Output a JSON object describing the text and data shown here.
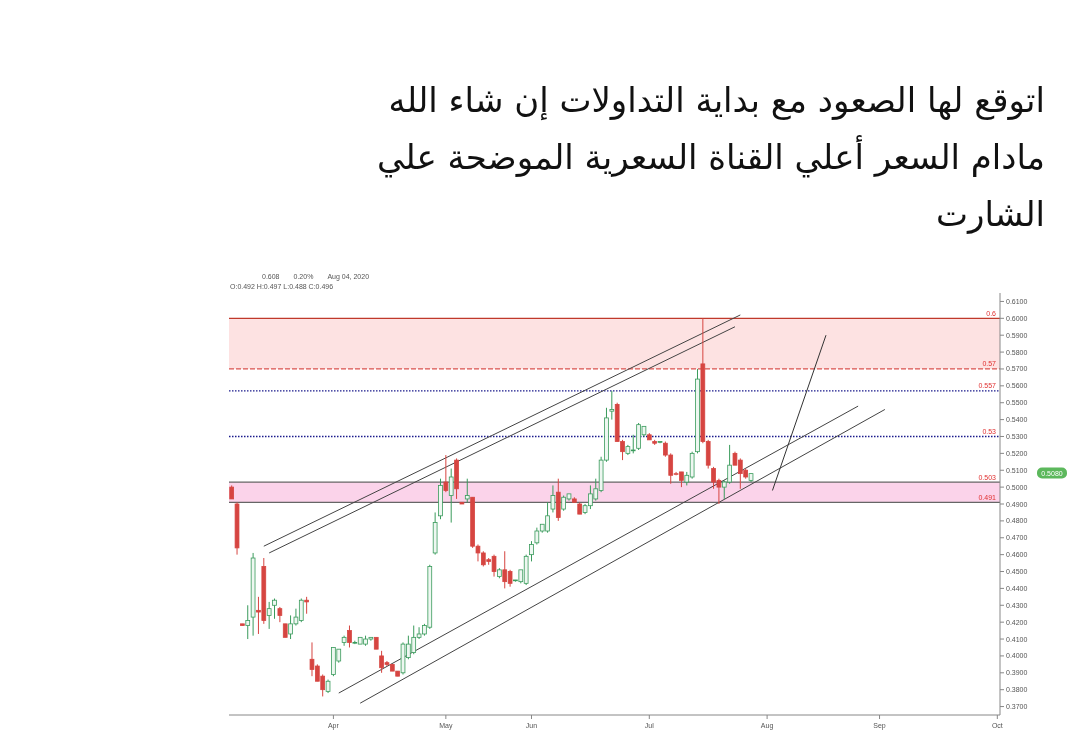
{
  "chart_data": {
    "type": "candlestick",
    "title": "اتوقع لها الصعود مع بداية التداولات إن شاء الله",
    "subtitle": "مادام السعر أعلي القناة السعرية الموضحة علي الشارت",
    "categories": [
      null,
      null,
      null,
      null,
      null,
      null,
      null,
      null,
      null,
      null,
      null,
      null,
      null,
      null,
      null,
      null,
      null,
      null,
      null,
      "Apr",
      null,
      null,
      null,
      null,
      null,
      null,
      null,
      null,
      null,
      null,
      null,
      null,
      null,
      null,
      null,
      null,
      null,
      null,
      null,
      null,
      "May",
      null,
      null,
      null,
      null,
      null,
      null,
      null,
      null,
      null,
      null,
      null,
      null,
      null,
      null,
      null,
      "Jun",
      null,
      null,
      null,
      null,
      null,
      null,
      null,
      null,
      null,
      null,
      null,
      null,
      null,
      null,
      null,
      null,
      null,
      null,
      null,
      null,
      null,
      "Jul",
      null,
      null,
      null,
      null,
      null,
      null,
      null,
      null,
      null,
      null,
      null,
      null,
      null,
      null,
      null,
      null,
      null,
      null,
      null,
      null,
      null,
      "Aug",
      null,
      null,
      null,
      null,
      null,
      null,
      null,
      null,
      null,
      null,
      null,
      null,
      null,
      null,
      null,
      null,
      null,
      null,
      null,
      null,
      "Sep",
      null,
      null,
      null,
      null,
      null,
      null,
      null,
      null,
      null,
      null,
      null,
      null,
      null,
      null,
      null,
      null,
      null,
      null,
      null,
      null,
      null,
      "Oct"
    ],
    "ohlc": [
      [
        0.5,
        0.501,
        0.493,
        0.493
      ],
      [
        0.49,
        0.491,
        0.46,
        0.464
      ],
      [
        0.419,
        0.419,
        0.418,
        0.418
      ],
      [
        0.418,
        0.43,
        0.41,
        0.421
      ],
      [
        0.423,
        0.461,
        0.412,
        0.458
      ],
      [
        0.427,
        0.435,
        0.413,
        0.426
      ],
      [
        0.453,
        0.458,
        0.419,
        0.421
      ],
      [
        0.424,
        0.432,
        0.416,
        0.428
      ],
      [
        0.43,
        0.434,
        0.422,
        0.433
      ],
      [
        0.428,
        0.429,
        0.42,
        0.424
      ],
      [
        0.419,
        0.419,
        0.411,
        0.411
      ],
      [
        0.413,
        0.424,
        0.41,
        0.419
      ],
      [
        0.419,
        0.428,
        0.418,
        0.423
      ],
      [
        0.421,
        0.434,
        0.42,
        0.433
      ],
      [
        0.433,
        0.435,
        0.425,
        0.432
      ],
      [
        0.398,
        0.408,
        0.388,
        0.392
      ],
      [
        0.394,
        0.395,
        0.385,
        0.385
      ],
      [
        0.388,
        0.389,
        0.376,
        0.38
      ],
      [
        0.379,
        0.386,
        0.378,
        0.385
      ],
      [
        0.389,
        0.405,
        0.388,
        0.405
      ],
      [
        0.397,
        0.404,
        0.396,
        0.404
      ],
      [
        0.408,
        0.412,
        0.406,
        0.411
      ],
      [
        0.415,
        0.418,
        0.405,
        0.408
      ],
      [
        0.408,
        0.409,
        0.407,
        0.408
      ],
      [
        0.407,
        0.411,
        0.407,
        0.411
      ],
      [
        0.407,
        0.412,
        0.406,
        0.41
      ],
      [
        0.41,
        0.411,
        0.409,
        0.411
      ],
      [
        0.411,
        0.411,
        0.404,
        0.404
      ],
      [
        0.4,
        0.403,
        0.39,
        0.393
      ],
      [
        0.396,
        0.397,
        0.394,
        0.395
      ],
      [
        0.395,
        0.395,
        0.391,
        0.391
      ],
      [
        0.391,
        0.391,
        0.388,
        0.388
      ],
      [
        0.39,
        0.408,
        0.389,
        0.407
      ],
      [
        0.399,
        0.412,
        0.398,
        0.407
      ],
      [
        0.402,
        0.418,
        0.401,
        0.411
      ],
      [
        0.411,
        0.417,
        0.41,
        0.413
      ],
      [
        0.413,
        0.419,
        0.412,
        0.418
      ],
      [
        0.417,
        0.454,
        0.416,
        0.453
      ],
      [
        0.461,
        0.485,
        0.46,
        0.479
      ],
      [
        0.483,
        0.505,
        0.481,
        0.501
      ],
      [
        0.503,
        0.519,
        0.497,
        0.498
      ],
      [
        0.495,
        0.511,
        0.479,
        0.506
      ],
      [
        0.516,
        0.517,
        0.493,
        0.499
      ],
      [
        0.491,
        0.491,
        0.49,
        0.49
      ],
      [
        0.493,
        0.505,
        0.491,
        0.495
      ],
      [
        0.494,
        0.494,
        0.464,
        0.465
      ],
      [
        0.465,
        0.466,
        0.456,
        0.461
      ],
      [
        0.461,
        0.462,
        0.453,
        0.454
      ],
      [
        0.457,
        0.458,
        0.454,
        0.456
      ],
      [
        0.459,
        0.46,
        0.447,
        0.45
      ],
      [
        0.447,
        0.452,
        0.446,
        0.451
      ],
      [
        0.451,
        0.462,
        0.44,
        0.444
      ],
      [
        0.45,
        0.451,
        0.441,
        0.443
      ],
      [
        0.445,
        0.445,
        0.444,
        0.445
      ],
      [
        0.444,
        0.451,
        0.443,
        0.451
      ],
      [
        0.443,
        0.46,
        0.442,
        0.459
      ],
      [
        0.46,
        0.468,
        0.456,
        0.466
      ],
      [
        0.467,
        0.476,
        0.466,
        0.474
      ],
      [
        0.474,
        0.478,
        0.473,
        0.478
      ],
      [
        0.474,
        0.491,
        0.473,
        0.483
      ],
      [
        0.487,
        0.501,
        0.485,
        0.495
      ],
      [
        0.497,
        0.505,
        0.48,
        0.482
      ],
      [
        0.487,
        0.495,
        0.486,
        0.494
      ],
      [
        0.493,
        0.496,
        0.492,
        0.496
      ],
      [
        0.493,
        0.494,
        0.491,
        0.491
      ],
      [
        0.49,
        0.491,
        0.484,
        0.484
      ],
      [
        0.485,
        0.49,
        0.484,
        0.489
      ],
      [
        0.489,
        0.501,
        0.487,
        0.496
      ],
      [
        0.493,
        0.505,
        0.492,
        0.499
      ],
      [
        0.498,
        0.518,
        0.497,
        0.516
      ],
      [
        0.516,
        0.547,
        0.515,
        0.541
      ],
      [
        0.545,
        0.557,
        0.54,
        0.546
      ],
      [
        0.549,
        0.55,
        0.527,
        0.527
      ],
      [
        0.527,
        0.528,
        0.516,
        0.521
      ],
      [
        0.52,
        0.525,
        0.519,
        0.524
      ],
      [
        0.522,
        0.531,
        0.52,
        0.522
      ],
      [
        0.523,
        0.538,
        0.522,
        0.537
      ],
      [
        0.531,
        0.536,
        0.53,
        0.536
      ],
      [
        0.531,
        0.532,
        0.528,
        0.528
      ],
      [
        0.527,
        0.528,
        0.525,
        0.526
      ],
      [
        0.527,
        0.527,
        0.526,
        0.527
      ],
      [
        0.526,
        0.527,
        0.518,
        0.519
      ],
      [
        0.519,
        0.52,
        0.502,
        0.507
      ],
      [
        0.508,
        0.509,
        0.507,
        0.508
      ],
      [
        0.509,
        0.509,
        0.5,
        0.504
      ],
      [
        0.503,
        0.509,
        0.501,
        0.507
      ],
      [
        0.506,
        0.521,
        0.505,
        0.52
      ],
      [
        0.521,
        0.57,
        0.52,
        0.564
      ],
      [
        0.573,
        0.6,
        0.526,
        0.527
      ],
      [
        0.527,
        0.528,
        0.511,
        0.513
      ],
      [
        0.511,
        0.512,
        0.499,
        0.503
      ],
      [
        0.504,
        0.505,
        0.49,
        0.5
      ],
      [
        0.5,
        0.504,
        0.493,
        0.503
      ],
      [
        0.503,
        0.525,
        0.502,
        0.513
      ],
      [
        0.52,
        0.521,
        0.513,
        0.513
      ],
      [
        0.516,
        0.517,
        0.499,
        0.508
      ],
      [
        0.51,
        0.511,
        0.505,
        0.506
      ],
      [
        0.504,
        0.508,
        0.503,
        0.508
      ],
      null,
      null,
      null,
      null,
      null,
      null,
      null,
      null,
      null,
      null,
      null,
      null,
      null,
      null,
      null,
      null,
      null,
      null,
      null,
      null,
      null,
      null,
      null,
      null,
      null,
      null,
      null,
      null,
      null,
      null,
      null,
      null,
      null,
      null,
      null,
      null,
      null,
      null,
      null,
      null,
      null,
      null,
      null,
      null,
      null,
      null
    ],
    "colors": [
      "#d64541",
      "#d64541",
      "#d64541",
      "#3a9b5c",
      "#3a9b5c",
      "#d64541",
      "#d64541",
      "#3a9b5c",
      "#3a9b5c",
      "#d64541",
      "#d64541",
      "#3a9b5c",
      "#3a9b5c",
      "#3a9b5c",
      "#d64541",
      "#d64541",
      "#d64541",
      "#d64541",
      "#3a9b5c",
      "#3a9b5c",
      "#3a9b5c",
      "#3a9b5c",
      "#d64541",
      "#3a9b5c",
      "#3a9b5c",
      "#3a9b5c",
      "#3a9b5c",
      "#d64541",
      "#d64541",
      "#d64541",
      "#d64541",
      "#d64541",
      "#3a9b5c",
      "#3a9b5c",
      "#3a9b5c",
      "#3a9b5c",
      "#3a9b5c",
      "#3a9b5c",
      "#3a9b5c",
      "#3a9b5c",
      "#d64541",
      "#3a9b5c",
      "#d64541",
      "#d64541",
      "#3a9b5c",
      "#d64541",
      "#d64541",
      "#d64541",
      "#d64541",
      "#d64541",
      "#3a9b5c",
      "#d64541",
      "#d64541",
      "#3a9b5c",
      "#3a9b5c",
      "#3a9b5c",
      "#3a9b5c",
      "#3a9b5c",
      "#3a9b5c",
      "#3a9b5c",
      "#3a9b5c",
      "#d64541",
      "#3a9b5c",
      "#3a9b5c",
      "#d64541",
      "#d64541",
      "#3a9b5c",
      "#3a9b5c",
      "#3a9b5c",
      "#3a9b5c",
      "#3a9b5c",
      "#3a9b5c",
      "#d64541",
      "#d64541",
      "#3a9b5c",
      "#3a9b5c",
      "#3a9b5c",
      "#3a9b5c",
      "#d64541",
      "#d64541",
      "#3a9b5c",
      "#d64541",
      "#d64541",
      "#d64541",
      "#d64541",
      "#3a9b5c",
      "#3a9b5c",
      "#3a9b5c",
      "#d64541",
      "#d64541",
      "#d64541",
      "#d64541",
      "#3a9b5c",
      "#3a9b5c",
      "#d64541",
      "#d64541",
      "#d64541",
      "#3a9b5c",
      null,
      null,
      null,
      null,
      null,
      null,
      null,
      null,
      null,
      null,
      null,
      null,
      null,
      null,
      null,
      null,
      null,
      null,
      null,
      null,
      null,
      null,
      null,
      null,
      null,
      null,
      null,
      null,
      null,
      null,
      null,
      null,
      null,
      null,
      null,
      null,
      null,
      null,
      null,
      null,
      null,
      null,
      null,
      null,
      null,
      null
    ],
    "ylim": [
      0.365,
      0.615
    ],
    "yticks": [
      {
        "value": 0.37,
        "label": "0.3700"
      },
      {
        "value": 0.38,
        "label": "0.3800"
      },
      {
        "value": 0.39,
        "label": "0.3900"
      },
      {
        "value": 0.4,
        "label": "0.4000"
      },
      {
        "value": 0.41,
        "label": "0.4100"
      },
      {
        "value": 0.42,
        "label": "0.4200"
      },
      {
        "value": 0.43,
        "label": "0.4300"
      },
      {
        "value": 0.44,
        "label": "0.4400"
      },
      {
        "value": 0.45,
        "label": "0.4500"
      },
      {
        "value": 0.46,
        "label": "0.4600"
      },
      {
        "value": 0.47,
        "label": "0.4700"
      },
      {
        "value": 0.48,
        "label": "0.4800"
      },
      {
        "value": 0.49,
        "label": "0.4900"
      },
      {
        "value": 0.5,
        "label": "0.5000"
      },
      {
        "value": 0.51,
        "label": "0.5100"
      },
      {
        "value": 0.52,
        "label": "0.5200"
      },
      {
        "value": 0.53,
        "label": "0.5300"
      },
      {
        "value": 0.54,
        "label": "0.5400"
      },
      {
        "value": 0.55,
        "label": "0.5500"
      },
      {
        "value": 0.56,
        "label": "0.5600"
      },
      {
        "value": 0.57,
        "label": "0.5700"
      },
      {
        "value": 0.58,
        "label": "0.5800"
      },
      {
        "value": 0.59,
        "label": "0.5900"
      },
      {
        "value": 0.6,
        "label": "0.6000"
      },
      {
        "value": 0.61,
        "label": "0.6100"
      }
    ],
    "series": [
      {
        "type": "line",
        "color": "#444444",
        "values": [
          null,
          null,
          null,
          null,
          null,
          null,
          0.465,
          null,
          null,
          null,
          null,
          null,
          null,
          null,
          null,
          null,
          null,
          null,
          null,
          null,
          null,
          null,
          null,
          null,
          null,
          null,
          null,
          null,
          null,
          null,
          null,
          null,
          null,
          null,
          null,
          null,
          null,
          null,
          null,
          null,
          null,
          null,
          null,
          null,
          null,
          null,
          null,
          null,
          null,
          null,
          null,
          null,
          null,
          null,
          null,
          null,
          null,
          null,
          null,
          null,
          null,
          null,
          null,
          null,
          null,
          null,
          null,
          null,
          null,
          null,
          null,
          null,
          null,
          null,
          null,
          null,
          null,
          null,
          null,
          null,
          null,
          null,
          null,
          null,
          null,
          null,
          null,
          null,
          null,
          null,
          null,
          null,
          null,
          null,
          null,
          0.602,
          null,
          null,
          null,
          null,
          null,
          null,
          null,
          null,
          null,
          null,
          null,
          null,
          null,
          null,
          null,
          null,
          null,
          null,
          null,
          null,
          null,
          null,
          null,
          null,
          null,
          null,
          null,
          null,
          null,
          null,
          null,
          null,
          null,
          null,
          null,
          null,
          null,
          null,
          null,
          null,
          null,
          null,
          null,
          null,
          null,
          null,
          null,
          null
        ]
      },
      {
        "type": "line",
        "color": "#444444",
        "values": [
          null,
          null,
          null,
          null,
          null,
          null,
          null,
          0.461,
          null,
          null,
          null,
          null,
          null,
          null,
          null,
          null,
          null,
          null,
          null,
          null,
          null,
          null,
          null,
          null,
          null,
          null,
          null,
          null,
          null,
          null,
          null,
          null,
          null,
          null,
          null,
          null,
          null,
          null,
          null,
          null,
          null,
          null,
          null,
          null,
          null,
          null,
          null,
          null,
          null,
          null,
          null,
          null,
          null,
          null,
          null,
          null,
          null,
          null,
          null,
          null,
          null,
          null,
          null,
          null,
          null,
          null,
          null,
          null,
          null,
          null,
          null,
          null,
          null,
          null,
          null,
          null,
          null,
          null,
          null,
          null,
          null,
          null,
          null,
          null,
          null,
          null,
          null,
          null,
          null,
          null,
          null,
          null,
          null,
          null,
          0.595,
          null,
          null,
          null,
          null,
          null,
          null,
          null,
          null,
          null,
          null,
          null,
          null,
          null,
          null,
          null,
          null,
          null,
          null,
          null,
          null,
          null,
          null,
          null,
          null,
          null,
          null,
          null,
          null,
          null,
          null,
          null,
          null,
          null,
          null,
          null,
          null,
          null,
          null,
          null,
          null,
          null,
          null,
          null,
          null,
          null,
          null,
          null,
          null,
          null
        ]
      },
      {
        "type": "line",
        "color": "#444444",
        "values": [
          null,
          null,
          null,
          null,
          null,
          null,
          null,
          null,
          null,
          null,
          null,
          null,
          null,
          null,
          null,
          null,
          null,
          null,
          null,
          null,
          0.378,
          null,
          null,
          null,
          null,
          null,
          null,
          null,
          null,
          null,
          null,
          null,
          null,
          null,
          null,
          null,
          null,
          null,
          null,
          null,
          null,
          null,
          null,
          null,
          null,
          null,
          null,
          null,
          null,
          null,
          null,
          null,
          null,
          null,
          null,
          null,
          null,
          null,
          null,
          null,
          null,
          null,
          null,
          null,
          null,
          null,
          null,
          null,
          null,
          null,
          null,
          null,
          null,
          null,
          null,
          null,
          null,
          null,
          null,
          null,
          null,
          null,
          null,
          null,
          null,
          null,
          null,
          null,
          null,
          null,
          null,
          null,
          null,
          null,
          null,
          null,
          null,
          null,
          null,
          null,
          null,
          null,
          null,
          null,
          null,
          null,
          null,
          null,
          null,
          null,
          null,
          null,
          null,
          null,
          null,
          null,
          null,
          0.548,
          null,
          null,
          null,
          null,
          null,
          null,
          null,
          null,
          null,
          null,
          null,
          null,
          null,
          null,
          null,
          null,
          null,
          null,
          null,
          null,
          null,
          null,
          null,
          null,
          null,
          null
        ]
      },
      {
        "type": "line",
        "color": "#444444",
        "values": [
          null,
          null,
          null,
          null,
          null,
          null,
          null,
          null,
          null,
          null,
          null,
          null,
          null,
          null,
          null,
          null,
          null,
          null,
          null,
          null,
          null,
          null,
          null,
          null,
          0.372,
          null,
          null,
          null,
          null,
          null,
          null,
          null,
          null,
          null,
          null,
          null,
          null,
          null,
          null,
          null,
          null,
          null,
          null,
          null,
          null,
          null,
          null,
          null,
          null,
          null,
          null,
          null,
          null,
          null,
          null,
          null,
          null,
          null,
          null,
          null,
          null,
          null,
          null,
          null,
          null,
          null,
          null,
          null,
          null,
          null,
          null,
          null,
          null,
          null,
          null,
          null,
          null,
          null,
          null,
          null,
          null,
          null,
          null,
          null,
          null,
          null,
          null,
          null,
          null,
          null,
          null,
          null,
          null,
          null,
          null,
          null,
          null,
          null,
          null,
          null,
          null,
          null,
          null,
          null,
          null,
          null,
          null,
          null,
          null,
          null,
          null,
          null,
          null,
          null,
          null,
          null,
          null,
          null,
          null,
          null,
          null,
          null,
          0.546,
          null,
          null,
          null,
          null,
          null,
          null,
          null,
          null,
          null,
          null,
          null,
          null,
          null,
          null,
          null,
          null,
          null,
          null,
          null,
          null,
          null
        ]
      },
      {
        "type": "line",
        "color": "#333333",
        "values": [
          null,
          null,
          null,
          null,
          null,
          null,
          null,
          null,
          null,
          null,
          null,
          null,
          null,
          null,
          null,
          null,
          null,
          null,
          null,
          null,
          null,
          null,
          null,
          null,
          null,
          null,
          null,
          null,
          null,
          null,
          null,
          null,
          null,
          null,
          null,
          null,
          null,
          null,
          null,
          null,
          null,
          null,
          null,
          null,
          null,
          null,
          null,
          null,
          null,
          null,
          null,
          null,
          null,
          null,
          null,
          null,
          null,
          null,
          null,
          null,
          null,
          null,
          null,
          null,
          null,
          null,
          null,
          null,
          null,
          null,
          null,
          null,
          null,
          null,
          null,
          null,
          null,
          null,
          null,
          null,
          null,
          null,
          null,
          null,
          null,
          null,
          null,
          null,
          null,
          null,
          null,
          null,
          null,
          null,
          null,
          null,
          null,
          null,
          null,
          null,
          null,
          0.498,
          null,
          null,
          null,
          null,
          null,
          null,
          null,
          null,
          null,
          0.59,
          null,
          null,
          null,
          null,
          null,
          null,
          null,
          null,
          null,
          null,
          null,
          null,
          null,
          null,
          null,
          null,
          null,
          null,
          null,
          null,
          null,
          null,
          null,
          null,
          null,
          null,
          null,
          null,
          null,
          null,
          null,
          null
        ]
      }
    ],
    "bands": [
      {
        "axis": "y",
        "from": 0.57,
        "to": 0.6,
        "color": "#fde2e2"
      },
      {
        "axis": "y",
        "from": 0.491,
        "to": 0.503,
        "color": "#fbd3ea"
      }
    ],
    "ref_lines": [
      {
        "axis": "y",
        "value": 0.6,
        "label": "0.6",
        "color": "#c0392b",
        "line_style": "solid"
      },
      {
        "axis": "y",
        "value": 0.57,
        "label": "0.57",
        "color": "#d9534f",
        "line_style": "dashed"
      },
      {
        "axis": "y",
        "value": 0.557,
        "label": "0.557",
        "color": "#1a1a8c",
        "line_style": "dotted"
      },
      {
        "axis": "y",
        "value": 0.53,
        "label": "0.53",
        "color": "#1a1a8c",
        "line_style": "dotted"
      },
      {
        "axis": "y",
        "value": 0.503,
        "label": "0.503",
        "color": "#666666",
        "line_style": "solid"
      },
      {
        "axis": "y",
        "value": 0.491,
        "label": "0.491",
        "color": "#666666",
        "line_style": "solid"
      }
    ],
    "annotations": [
      "0.608",
      "0.20%",
      "Aug 04, 2020",
      "O:0.492 H:0.497 L:0.488 C:0.496",
      "0.5080"
    ]
  }
}
